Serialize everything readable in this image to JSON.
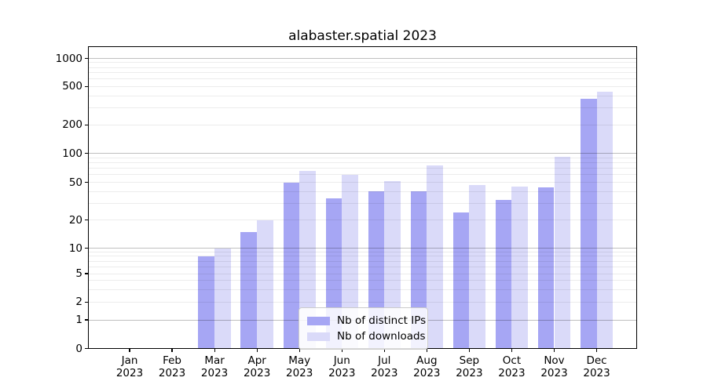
{
  "title": "alabaster.spatial 2023",
  "chart_data": {
    "type": "bar",
    "title": "alabaster.spatial 2023",
    "categories": [
      "Jan 2023",
      "Feb 2023",
      "Mar 2023",
      "Apr 2023",
      "May 2023",
      "Jun 2023",
      "Jul 2023",
      "Aug 2023",
      "Sep 2023",
      "Oct 2023",
      "Nov 2023",
      "Dec 2023"
    ],
    "series": [
      {
        "name": "Nb of distinct IPs",
        "color": "#a6a6f4",
        "values": [
          0,
          0,
          8,
          15,
          50,
          34,
          40,
          40,
          24,
          33,
          44,
          375
        ]
      },
      {
        "name": "Nb of downloads",
        "color": "#dadaf9",
        "values": [
          0,
          0,
          10,
          20,
          66,
          60,
          52,
          75,
          47,
          45,
          93,
          445
        ]
      }
    ],
    "xlabel": "",
    "ylabel": "",
    "y_ticks": [
      0,
      1,
      2,
      5,
      10,
      20,
      50,
      100,
      200,
      500,
      1000
    ],
    "ylim": [
      0,
      1300
    ],
    "scale": "symlog",
    "grid": true,
    "legend_position": "lower center"
  },
  "style": {
    "grid_minor_color": "rgba(0,0,0,0.075)",
    "grid_major_color": "rgba(0,0,0,0.25)",
    "axis_color": "#000000",
    "legend_border_color": "#cccccc",
    "text_color": "#000000"
  }
}
